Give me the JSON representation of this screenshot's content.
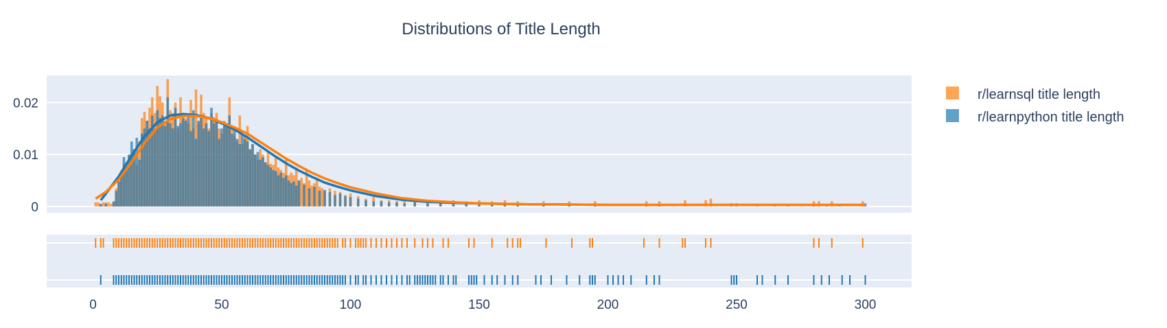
{
  "chart_data": {
    "type": "histogram",
    "title": "Distributions of Title Length",
    "xlabel": "",
    "ylabel": "",
    "xlim": [
      -18,
      318
    ],
    "ylim": [
      -0.0012,
      0.0252
    ],
    "x_ticks": [
      0,
      50,
      100,
      150,
      200,
      250,
      300
    ],
    "x_tick_labels": [
      "0",
      "50",
      "100",
      "150",
      "200",
      "250",
      "300"
    ],
    "y_ticks": [
      0,
      0.01,
      0.02
    ],
    "y_tick_labels": [
      "0",
      "0.01",
      "0.02"
    ],
    "grid": true,
    "legend_position": "top-right",
    "series": [
      {
        "name": "r/learnsql title length",
        "color": "#ff7f0e",
        "curve_x": [
          1,
          5,
          10,
          15,
          20,
          25,
          30,
          35,
          40,
          45,
          50,
          55,
          60,
          65,
          70,
          75,
          80,
          85,
          90,
          95,
          100,
          110,
          120,
          130,
          140,
          150,
          160,
          170,
          180,
          200,
          220,
          240,
          260,
          280,
          300
        ],
        "curve_y": [
          0.0015,
          0.0028,
          0.0052,
          0.0085,
          0.0122,
          0.0152,
          0.0168,
          0.0174,
          0.0174,
          0.017,
          0.0162,
          0.0152,
          0.014,
          0.0124,
          0.0108,
          0.0092,
          0.0078,
          0.0065,
          0.0054,
          0.0045,
          0.0037,
          0.0025,
          0.0016,
          0.0011,
          0.0008,
          0.0006,
          0.0005,
          0.0004,
          0.0004,
          0.0003,
          0.0003,
          0.0003,
          0.0003,
          0.0003,
          0.0003
        ],
        "hist_x": [
          1,
          2,
          3,
          4,
          5,
          6,
          7,
          8,
          9,
          10,
          11,
          12,
          13,
          14,
          15,
          16,
          17,
          18,
          19,
          20,
          21,
          22,
          23,
          24,
          25,
          26,
          27,
          28,
          29,
          30,
          31,
          32,
          33,
          34,
          35,
          36,
          37,
          38,
          39,
          40,
          41,
          42,
          43,
          44,
          45,
          46,
          47,
          48,
          49,
          50,
          51,
          52,
          53,
          54,
          55,
          56,
          57,
          58,
          59,
          60,
          61,
          62,
          63,
          64,
          65,
          66,
          67,
          68,
          69,
          70,
          71,
          72,
          73,
          74,
          75,
          76,
          77,
          78,
          79,
          80,
          81,
          82,
          83,
          84,
          85,
          86,
          87,
          88,
          89,
          90,
          92,
          94,
          96,
          98,
          100,
          103,
          106,
          109,
          112,
          115,
          118,
          121,
          125,
          130,
          135,
          140,
          145,
          150,
          155,
          160,
          165,
          175,
          185,
          195,
          215,
          220,
          230,
          238,
          240,
          280,
          282,
          287,
          299
        ],
        "hist_y": [
          0.0008,
          0.0008,
          0.0005,
          0.0008,
          0.0008,
          0.0008,
          0.0005,
          0.0008,
          0.0035,
          0.0055,
          0.006,
          0.0082,
          0.0075,
          0.0098,
          0.0102,
          0.011,
          0.008,
          0.0125,
          0.017,
          0.0182,
          0.0165,
          0.019,
          0.021,
          0.018,
          0.0232,
          0.0212,
          0.02,
          0.0165,
          0.0245,
          0.0185,
          0.018,
          0.02,
          0.015,
          0.021,
          0.0178,
          0.017,
          0.016,
          0.0205,
          0.015,
          0.0225,
          0.016,
          0.0215,
          0.018,
          0.0172,
          0.015,
          0.018,
          0.0172,
          0.018,
          0.015,
          0.014,
          0.0165,
          0.0155,
          0.021,
          0.015,
          0.0135,
          0.0125,
          0.0175,
          0.012,
          0.0135,
          0.0155,
          0.011,
          0.012,
          0.01,
          0.009,
          0.011,
          0.01,
          0.0085,
          0.0105,
          0.0082,
          0.008,
          0.0095,
          0.0075,
          0.007,
          0.0065,
          0.009,
          0.006,
          0.0065,
          0.006,
          0.0075,
          0.005,
          0.0055,
          0.0045,
          0.007,
          0.005,
          0.004,
          0.0045,
          0.0055,
          0.0038,
          0.0035,
          0.003,
          0.0035,
          0.003,
          0.0028,
          0.0022,
          0.0025,
          0.002,
          0.0015,
          0.0022,
          0.0012,
          0.0012,
          0.001,
          0.0012,
          0.001,
          0.0012,
          0.001,
          0.0012,
          0.001,
          0.0012,
          0.001,
          0.0012,
          0.001,
          0.001,
          0.001,
          0.001,
          0.001,
          0.001,
          0.0012,
          0.0012,
          0.0015,
          0.001,
          0.001,
          0.001,
          0.001
        ],
        "rug": [
          1,
          3,
          4,
          8,
          9,
          10,
          11,
          12,
          13,
          14,
          15,
          16,
          17,
          18,
          19,
          20,
          21,
          22,
          23,
          24,
          25,
          26,
          27,
          28,
          29,
          30,
          31,
          32,
          33,
          34,
          35,
          36,
          37,
          38,
          39,
          40,
          41,
          42,
          43,
          44,
          45,
          46,
          47,
          48,
          49,
          50,
          51,
          52,
          53,
          54,
          55,
          56,
          57,
          58,
          59,
          60,
          61,
          62,
          63,
          64,
          65,
          66,
          67,
          68,
          69,
          70,
          71,
          72,
          73,
          74,
          75,
          76,
          77,
          78,
          79,
          80,
          81,
          82,
          83,
          84,
          85,
          86,
          87,
          88,
          89,
          90,
          91,
          92,
          93,
          94,
          95,
          97,
          98,
          100,
          102,
          103,
          104,
          105,
          106,
          108,
          110,
          112,
          114,
          116,
          118,
          120,
          122,
          125,
          128,
          130,
          132,
          136,
          138,
          146,
          148,
          155,
          161,
          163,
          165,
          166,
          176,
          186,
          193,
          194,
          214,
          220,
          229,
          230,
          238,
          240,
          280,
          282,
          287,
          299
        ]
      },
      {
        "name": "r/learnpython title length",
        "color": "#1f77b4",
        "curve_x": [
          3,
          5,
          10,
          15,
          20,
          25,
          30,
          35,
          40,
          45,
          50,
          55,
          60,
          65,
          70,
          75,
          80,
          85,
          90,
          95,
          100,
          110,
          120,
          130,
          140,
          150,
          160,
          170,
          180,
          200,
          220,
          240,
          260,
          280,
          300
        ],
        "curve_y": [
          0.0012,
          0.0025,
          0.0058,
          0.0098,
          0.0135,
          0.0162,
          0.0175,
          0.0178,
          0.0176,
          0.017,
          0.016,
          0.0148,
          0.0133,
          0.0116,
          0.0099,
          0.0083,
          0.0069,
          0.0057,
          0.0046,
          0.0038,
          0.0031,
          0.002,
          0.0013,
          0.0009,
          0.0007,
          0.0006,
          0.0005,
          0.0004,
          0.0004,
          0.0003,
          0.0003,
          0.0003,
          0.0003,
          0.0003,
          0.0003
        ],
        "hist_x": [
          3,
          5,
          8,
          9,
          10,
          11,
          12,
          13,
          14,
          15,
          16,
          17,
          18,
          19,
          20,
          21,
          22,
          23,
          24,
          25,
          26,
          27,
          28,
          29,
          30,
          31,
          32,
          33,
          34,
          35,
          36,
          37,
          38,
          39,
          40,
          41,
          42,
          43,
          44,
          45,
          46,
          47,
          48,
          49,
          50,
          51,
          52,
          53,
          54,
          55,
          56,
          57,
          58,
          59,
          60,
          61,
          62,
          63,
          64,
          65,
          66,
          67,
          68,
          69,
          70,
          71,
          72,
          73,
          74,
          75,
          76,
          77,
          78,
          79,
          80,
          82,
          84,
          86,
          88,
          90,
          92,
          94,
          96,
          98,
          100,
          103,
          106,
          109,
          112,
          115,
          118,
          121,
          125,
          130,
          135,
          140,
          145,
          150,
          155,
          160,
          165,
          175,
          185,
          195,
          215,
          220,
          248,
          250,
          258,
          265,
          270,
          280,
          285,
          290,
          300
        ],
        "hist_y": [
          0.0005,
          0.0005,
          0.001,
          0.003,
          0.0048,
          0.0065,
          0.0095,
          0.0085,
          0.01,
          0.0125,
          0.011,
          0.0132,
          0.009,
          0.014,
          0.015,
          0.0165,
          0.015,
          0.0175,
          0.015,
          0.0185,
          0.017,
          0.0175,
          0.0155,
          0.021,
          0.016,
          0.015,
          0.019,
          0.0155,
          0.016,
          0.017,
          0.0165,
          0.0175,
          0.0145,
          0.0185,
          0.013,
          0.0165,
          0.0175,
          0.015,
          0.016,
          0.0145,
          0.019,
          0.016,
          0.0168,
          0.013,
          0.015,
          0.0155,
          0.016,
          0.0175,
          0.014,
          0.015,
          0.013,
          0.012,
          0.014,
          0.013,
          0.0125,
          0.011,
          0.012,
          0.01,
          0.0105,
          0.009,
          0.0095,
          0.0085,
          0.008,
          0.0075,
          0.007,
          0.0068,
          0.006,
          0.0065,
          0.0055,
          0.006,
          0.005,
          0.0045,
          0.0048,
          0.004,
          0.005,
          0.0042,
          0.0035,
          0.0038,
          0.003,
          0.0032,
          0.0028,
          0.0022,
          0.0025,
          0.002,
          0.0018,
          0.0015,
          0.0012,
          0.001,
          0.001,
          0.0008,
          0.0008,
          0.0006,
          0.0008,
          0.0006,
          0.0006,
          0.0005,
          0.0006,
          0.0005,
          0.0006,
          0.0005,
          0.0006,
          0.0005,
          0.0005,
          0.0005,
          0.0005,
          0.0005,
          0.0006,
          0.0006,
          0.0005,
          0.0005,
          0.0005,
          0.0005,
          0.0005,
          0.0005,
          0.0006
        ],
        "rug": [
          3,
          8,
          9,
          10,
          11,
          12,
          13,
          14,
          15,
          16,
          17,
          18,
          19,
          20,
          21,
          22,
          23,
          24,
          25,
          26,
          27,
          28,
          29,
          30,
          31,
          32,
          33,
          34,
          35,
          36,
          37,
          38,
          39,
          40,
          41,
          42,
          43,
          44,
          45,
          46,
          47,
          48,
          49,
          50,
          51,
          52,
          53,
          54,
          55,
          56,
          57,
          58,
          59,
          60,
          61,
          62,
          63,
          64,
          65,
          66,
          67,
          68,
          69,
          70,
          71,
          72,
          73,
          74,
          75,
          76,
          77,
          78,
          79,
          80,
          81,
          82,
          83,
          84,
          85,
          86,
          87,
          88,
          89,
          90,
          91,
          92,
          93,
          94,
          95,
          96,
          97,
          98,
          100,
          102,
          103,
          105,
          106,
          108,
          110,
          112,
          114,
          116,
          118,
          120,
          122,
          123,
          125,
          126,
          127,
          128,
          129,
          130,
          131,
          132,
          133,
          135,
          136,
          138,
          140,
          141,
          146,
          147,
          148,
          149,
          152,
          155,
          157,
          160,
          163,
          165,
          172,
          174,
          178,
          184,
          189,
          193,
          194,
          195,
          200,
          202,
          204,
          206,
          209,
          215,
          218,
          220,
          248,
          249,
          250,
          258,
          260,
          265,
          270,
          280,
          283,
          286,
          291,
          294,
          300
        ]
      }
    ]
  }
}
